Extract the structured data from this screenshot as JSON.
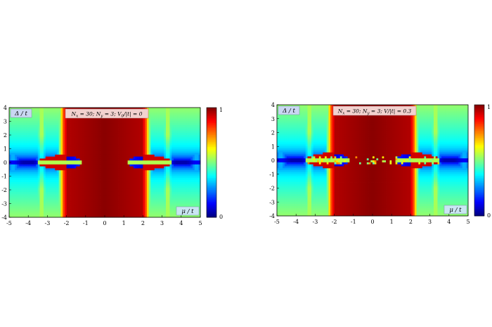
{
  "chart_data": [
    {
      "type": "heatmap",
      "panel": "left",
      "title": "N_x = 30;  N_y = 3;  V_0/|t| = 0",
      "title_parts": {
        "nx": "N",
        "nx_sub": "x",
        "nx_val": " = 30;  ",
        "ny": "N",
        "ny_sub": "y",
        "ny_val": " = 3;  ",
        "pot": "V",
        "pot_sub": "0",
        "pot_val": "/|t| = 0"
      },
      "xlabel": "μ / t",
      "ylabel": "Δ / t",
      "xlim": [
        -5,
        5
      ],
      "ylim": [
        -4,
        4
      ],
      "xticks": [
        "-5",
        "-4",
        "-3",
        "-2",
        "-1",
        "0",
        "1",
        "2",
        "3",
        "4",
        "5"
      ],
      "yticks": [
        "4",
        "3",
        "2",
        "1",
        "0",
        "-1",
        "-2",
        "-3",
        "-4"
      ],
      "colorbar": {
        "min": 0,
        "max": 1,
        "ticks": [
          "1",
          "0"
        ]
      },
      "features": {
        "central_band_half_width": 2.0,
        "lobe_centers": [
          -2.0,
          2.0
        ],
        "lobe_half_width": 1.5,
        "lobe_half_height": 0.55,
        "inner_blue_half_width": 0.8,
        "inner_blue_half_height": 0.45,
        "outer_ridges": [
          -3.3,
          3.3
        ],
        "disorder": 0
      }
    },
    {
      "type": "heatmap",
      "panel": "right",
      "title": "N_x = 30;  N_y = 3;  V/|t| = 0.3",
      "title_parts": {
        "nx": "N",
        "nx_sub": "x",
        "nx_val": " = 30;  ",
        "ny": "N",
        "ny_sub": "y",
        "ny_val": " = 3;  ",
        "pot": "V",
        "pot_sub": "",
        "pot_val": "/|t| = 0.3"
      },
      "xlabel": "μ / t",
      "ylabel": "Δ / t",
      "xlim": [
        -5,
        5
      ],
      "ylim": [
        -4,
        4
      ],
      "xticks": [
        "-5",
        "-4",
        "-3",
        "-2",
        "-1",
        "0",
        "1",
        "2",
        "3",
        "4",
        "5"
      ],
      "yticks": [
        "4",
        "3",
        "2",
        "1",
        "0",
        "-1",
        "-2",
        "-3",
        "-4"
      ],
      "colorbar": {
        "min": 0,
        "max": 1,
        "ticks": [
          "1",
          "0"
        ]
      },
      "features": {
        "central_band_half_width": 2.0,
        "lobe_centers": [
          -2.0,
          2.0
        ],
        "lobe_half_width": 1.5,
        "lobe_half_height": 0.55,
        "inner_blue_half_width": 0.8,
        "inner_blue_half_height": 0.45,
        "outer_ridges": [
          -3.3,
          3.3
        ],
        "disorder": 0.3
      }
    }
  ]
}
